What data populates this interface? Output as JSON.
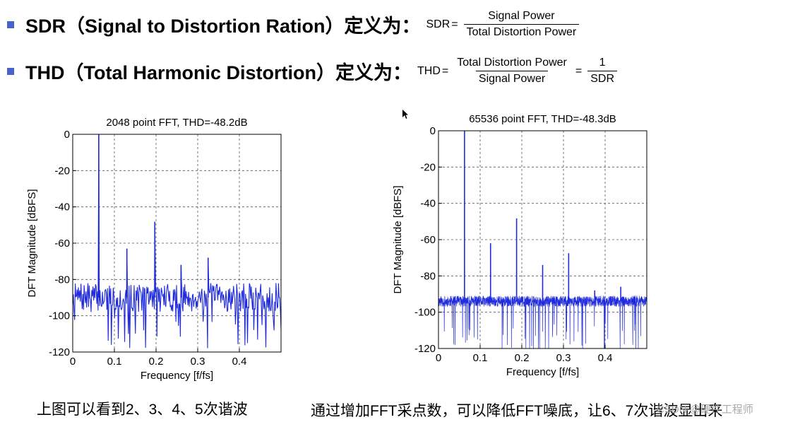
{
  "header": {
    "sdr_heading": "SDR（Signal to Distortion Ration）定义为：",
    "sdr_formula": {
      "lhs": "SDR",
      "eq": "=",
      "numerator": "Signal Power",
      "denominator": "Total Distortion Power"
    },
    "thd_heading": "THD（Total Harmonic Distortion）定义为：",
    "thd_formula": {
      "lhs": "THD",
      "eq1": "=",
      "numerator": "Total Distortion Power",
      "denominator": "Signal Power",
      "eq2": "=",
      "numerator2": "1",
      "denominator2": "SDR"
    },
    "bullet_color": "#4a63c8"
  },
  "chart_data": [
    {
      "type": "line",
      "title": "2048 point FFT, THD=-48.2dB",
      "xlabel": "Frequency [f/fs]",
      "ylabel": "DFT Magnitude [dBFS]",
      "xlim": [
        0,
        0.5
      ],
      "ylim": [
        -120,
        0
      ],
      "xticks": [
        "0",
        "0.1",
        "0.2",
        "0.3",
        "0.4"
      ],
      "yticks": [
        "0",
        "-20",
        "-40",
        "-60",
        "-80",
        "-100",
        "-120"
      ],
      "grid": true,
      "color": "#1f2bdc",
      "noise_floor_dB": -90,
      "peaks": [
        {
          "x": 0.0625,
          "y": 0
        },
        {
          "x": 0.13,
          "y": -63
        },
        {
          "x": 0.197,
          "y": -48.2
        },
        {
          "x": 0.26,
          "y": -72
        },
        {
          "x": 0.325,
          "y": -68
        }
      ]
    },
    {
      "type": "line",
      "title": "65536 point FFT, THD=-48.3dB",
      "xlabel": "Frequency [f/fs]",
      "ylabel": "DFT Magnitude [dBFS]",
      "xlim": [
        0,
        0.5
      ],
      "ylim": [
        -120,
        0
      ],
      "xticks": [
        "0",
        "0.1",
        "0.2",
        "0.3",
        "0.4"
      ],
      "yticks": [
        "0",
        "-20",
        "-40",
        "-60",
        "-80",
        "-100",
        "-120"
      ],
      "grid": true,
      "color": "#1f2bdc",
      "noise_floor_dB": -94,
      "peaks": [
        {
          "x": 0.0625,
          "y": 0
        },
        {
          "x": 0.125,
          "y": -62
        },
        {
          "x": 0.1875,
          "y": -48.3
        },
        {
          "x": 0.25,
          "y": -74
        },
        {
          "x": 0.3125,
          "y": -67.5
        },
        {
          "x": 0.375,
          "y": -88
        },
        {
          "x": 0.4375,
          "y": -86
        }
      ]
    }
  ],
  "captions": {
    "left": "上图可以看到2、3、4、5次谐波",
    "right": "通过增加FFT采点数，可以降低FFT噪底，让6、7次谐波显出来",
    "watermark": "CSDN @硬件工程师"
  }
}
